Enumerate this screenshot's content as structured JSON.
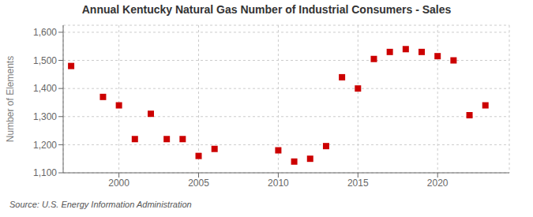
{
  "chart_data": {
    "type": "scatter",
    "title": "Annual Kentucky Natural Gas Number of Industrial Consumers - Sales",
    "y_label": "Number of Elements",
    "source": "Source: U.S. Energy Information Administration",
    "x": [
      1997,
      1999,
      2000,
      2001,
      2002,
      2003,
      2004,
      2005,
      2006,
      2010,
      2011,
      2012,
      2013,
      2014,
      2015,
      2016,
      2017,
      2018,
      2019,
      2020,
      2021,
      2022,
      2023
    ],
    "values": [
      1480,
      1370,
      1340,
      1220,
      1310,
      1220,
      1220,
      1160,
      1185,
      1180,
      1140,
      1150,
      1195,
      1440,
      1400,
      1505,
      1530,
      1540,
      1530,
      1515,
      1500,
      1305,
      1340
    ],
    "xlim": [
      1996.5,
      2024.5
    ],
    "ylim": [
      1100,
      1625
    ],
    "xticks": [
      2000,
      2005,
      2010,
      2015,
      2020
    ],
    "yticks": [
      {
        "value": 1100,
        "label": "1,100"
      },
      {
        "value": 1200,
        "label": "1,200"
      },
      {
        "value": 1300,
        "label": "1,300"
      },
      {
        "value": 1400,
        "label": "1,400"
      },
      {
        "value": 1500,
        "label": "1,500"
      },
      {
        "value": 1600,
        "label": "1,600"
      }
    ],
    "color": "#cc0000",
    "marker": "square",
    "grid": true
  }
}
